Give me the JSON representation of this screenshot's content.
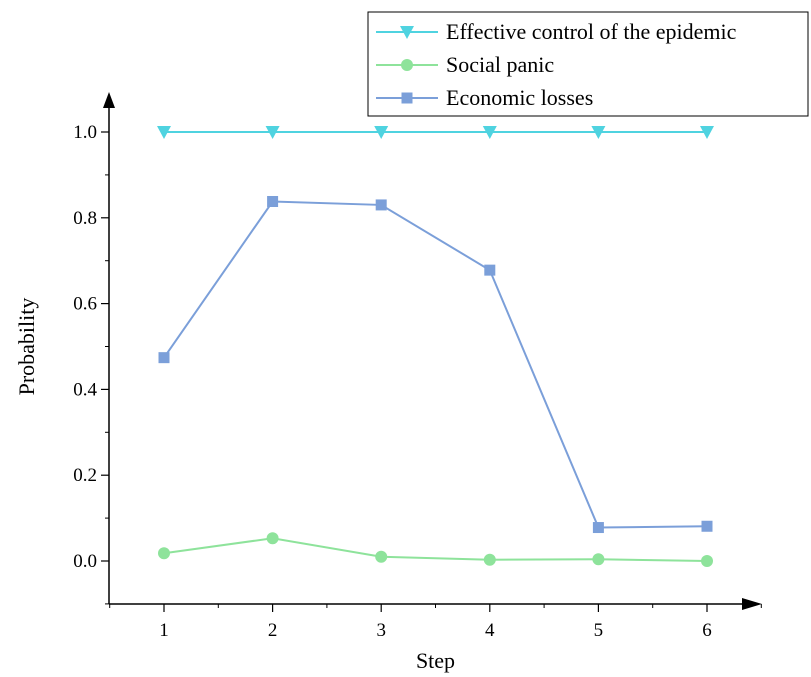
{
  "chart_data": {
    "type": "line",
    "title": "",
    "xlabel": "Step",
    "ylabel": "Probability",
    "x": [
      1,
      2,
      3,
      4,
      5,
      6
    ],
    "xlim": [
      0.5,
      6.6
    ],
    "ylim": [
      -0.1,
      1.05
    ],
    "x_ticks": [
      "1",
      "2",
      "3",
      "4",
      "5",
      "6"
    ],
    "y_ticks": [
      "0.0",
      "0.2",
      "0.4",
      "0.6",
      "0.8",
      "1.0"
    ],
    "grid": false,
    "legend_position": "top-right",
    "series": [
      {
        "name": "Effective control of the epidemic",
        "values": [
          1.0,
          1.0,
          1.0,
          1.0,
          1.0,
          1.0
        ],
        "color": "#4fd3e0",
        "marker": "triangle-down"
      },
      {
        "name": "Social panic",
        "values": [
          0.018,
          0.053,
          0.01,
          0.003,
          0.004,
          0.0
        ],
        "color": "#8ee39b",
        "marker": "circle"
      },
      {
        "name": "Economic losses",
        "values": [
          0.474,
          0.838,
          0.83,
          0.678,
          0.078,
          0.081
        ],
        "color": "#7b9fd9",
        "marker": "square"
      }
    ]
  }
}
